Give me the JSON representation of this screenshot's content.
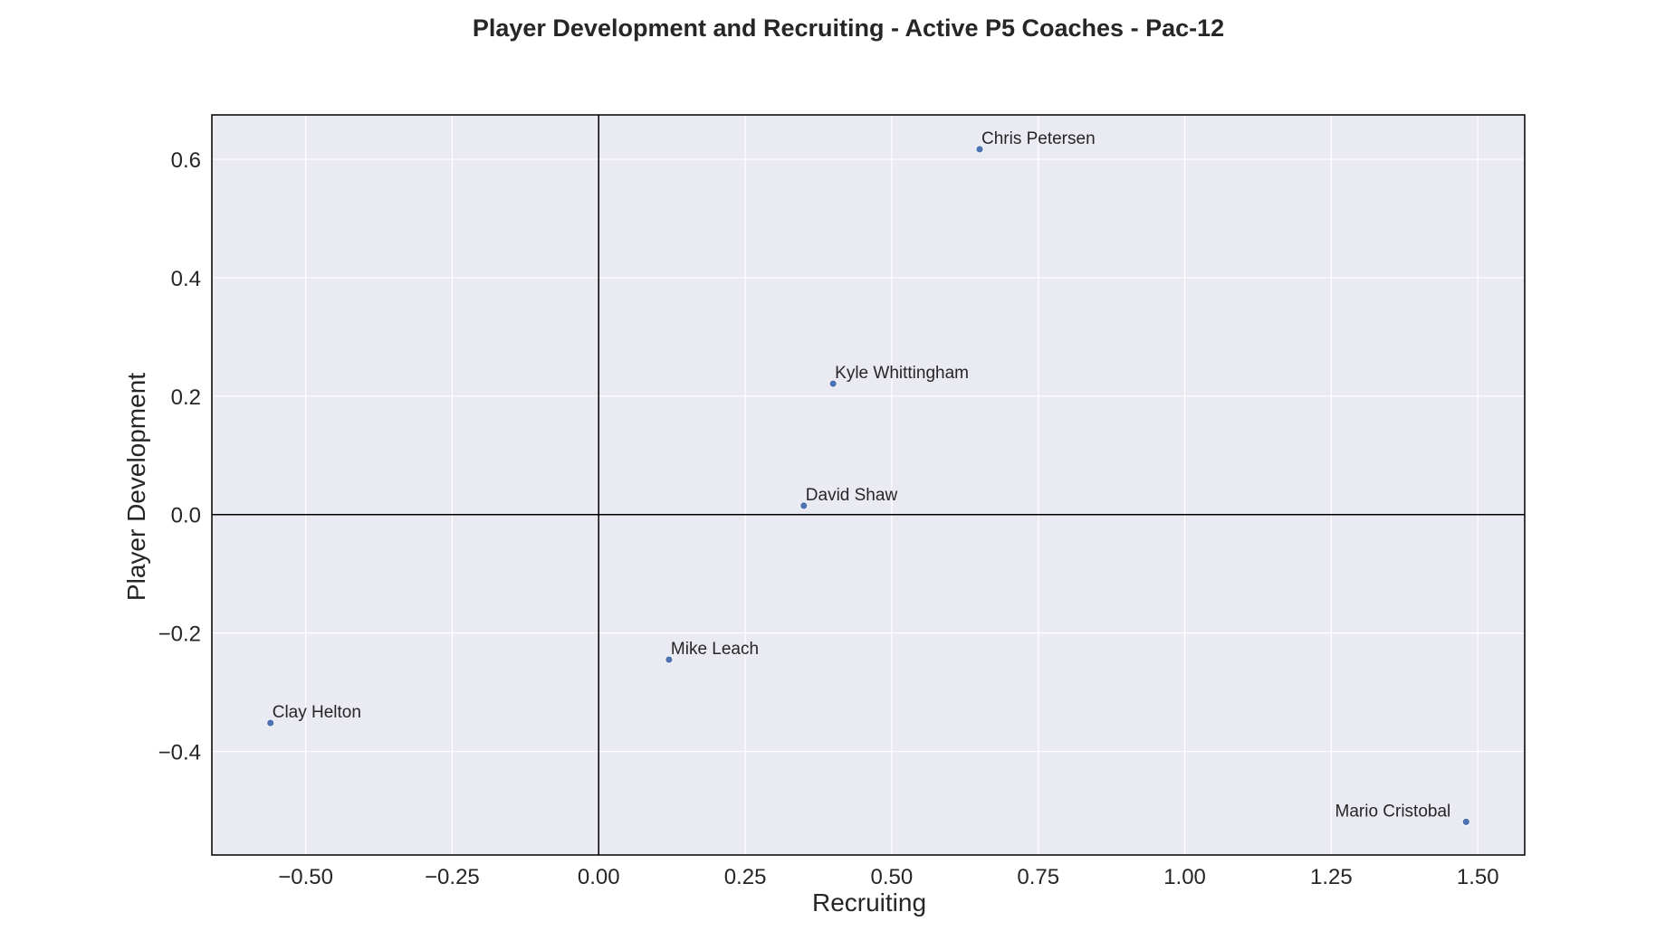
{
  "chart_data": {
    "type": "scatter",
    "title": "Player Development and Recruiting - Active P5 Coaches - Pac-12",
    "xlabel": "Recruiting",
    "ylabel": "Player Development",
    "xlim": [
      -0.66,
      1.58
    ],
    "ylim": [
      -0.575,
      0.675
    ],
    "xticks": [
      -0.5,
      -0.25,
      0.0,
      0.25,
      0.5,
      0.75,
      1.0,
      1.25,
      1.5
    ],
    "xtick_labels": [
      "−0.50",
      "−0.25",
      "0.00",
      "0.25",
      "0.50",
      "0.75",
      "1.00",
      "1.25",
      "1.50"
    ],
    "yticks": [
      0.6,
      0.4,
      0.2,
      0.0,
      -0.2,
      -0.4
    ],
    "ytick_labels": [
      "0.6",
      "0.4",
      "0.2",
      "0.0",
      "−0.2",
      "−0.4"
    ],
    "grid": true,
    "reference_lines": {
      "x": 0,
      "y": 0
    },
    "points": [
      {
        "label": "Chris Petersen",
        "x": 0.65,
        "y": 0.617,
        "label_align": "left"
      },
      {
        "label": "Kyle Whittingham",
        "x": 0.4,
        "y": 0.221,
        "label_align": "left"
      },
      {
        "label": "David Shaw",
        "x": 0.35,
        "y": 0.015,
        "label_align": "left"
      },
      {
        "label": "Mike Leach",
        "x": 0.12,
        "y": -0.245,
        "label_align": "left"
      },
      {
        "label": "Clay Helton",
        "x": -0.56,
        "y": -0.352,
        "label_align": "left"
      },
      {
        "label": "Mario Cristobal",
        "x": 1.48,
        "y": -0.519,
        "label_align": "right"
      }
    ],
    "colors": {
      "background": "#eaeaf2",
      "grid": "#ffffff",
      "point": "#4c72b0",
      "frame": "#000000",
      "text": "#262626"
    }
  }
}
